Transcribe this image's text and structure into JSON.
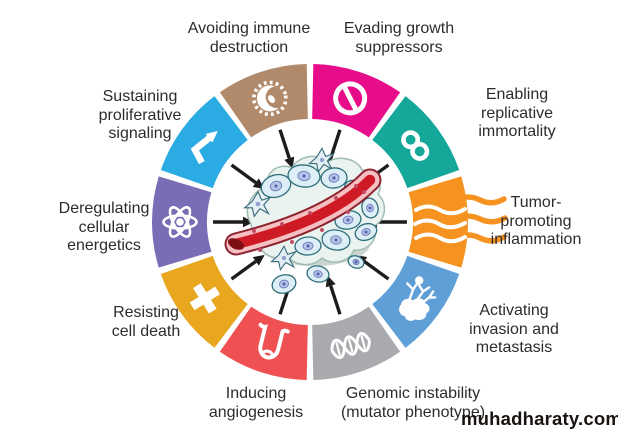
{
  "page": {
    "background_color": "#ffffff"
  },
  "figure": {
    "type": "hallmarks-of-cancer-wheel",
    "arrow_color": "#1c1c1c",
    "label_color": "#2e2b2c",
    "center_graphic": "tumor-with-blood-vessel",
    "segments": [
      {
        "id": "avoiding-immune-destruction",
        "label_lines": [
          "Avoiding immune",
          "destruction"
        ],
        "color": "#b18a6b",
        "icon": "immune-cell",
        "angle": 342,
        "icon_rotation": -10
      },
      {
        "id": "evading-growth-suppressors",
        "label_lines": [
          "Evading growth",
          "suppressors"
        ],
        "color": "#e60c8a",
        "icon": "prohibition",
        "angle": 18,
        "icon_rotation": 18
      },
      {
        "id": "enabling-replicative-immortality",
        "label_lines": [
          "Enabling",
          "replicative",
          "immortality"
        ],
        "color": "#14a79a",
        "icon": "infinity",
        "angle": 54,
        "icon_rotation": 52
      },
      {
        "id": "tumor-promoting-inflammation",
        "label_lines": [
          "Tumor-",
          "promoting",
          "inflammation"
        ],
        "color": "#f69220",
        "icon": "inflammation",
        "angle": 90,
        "icon_rotation": 0
      },
      {
        "id": "activating-invasion-metastasis",
        "label_lines": [
          "Activating",
          "invasion and",
          "metastasis"
        ],
        "color": "#5f9fd8",
        "icon": "metastasis",
        "angle": 126,
        "icon_rotation": 0
      },
      {
        "id": "genomic-instability",
        "label_lines": [
          "Genomic instability",
          "(mutator phenotype)"
        ],
        "color": "#a8aaad",
        "icon": "dna-helix",
        "angle": 162,
        "icon_rotation": -15
      },
      {
        "id": "inducing-angiogenesis",
        "label_lines": [
          "Inducing",
          "angiogenesis"
        ],
        "color": "#ef5052",
        "icon": "blood-vessel",
        "angle": 198,
        "icon_rotation": 14
      },
      {
        "id": "resisting-cell-death",
        "label_lines": [
          "Resisting",
          "cell death"
        ],
        "color": "#e9a71f",
        "icon": "cross",
        "angle": 234,
        "icon_rotation": -32
      },
      {
        "id": "deregulating-cellular-energetics",
        "label_lines": [
          "Deregulating",
          "cellular",
          "energetics"
        ],
        "color": "#7b6db5",
        "icon": "atom",
        "angle": 270,
        "icon_rotation": 0
      },
      {
        "id": "sustaining-proliferative-signaling",
        "label_lines": [
          "Sustaining",
          "proliferative",
          "signaling"
        ],
        "color": "#2aabe3",
        "icon": "signal-arrow",
        "angle": 306,
        "icon_rotation": 0
      }
    ]
  },
  "watermark": {
    "text": "muhadharaty.com",
    "color": "#1a1210"
  }
}
